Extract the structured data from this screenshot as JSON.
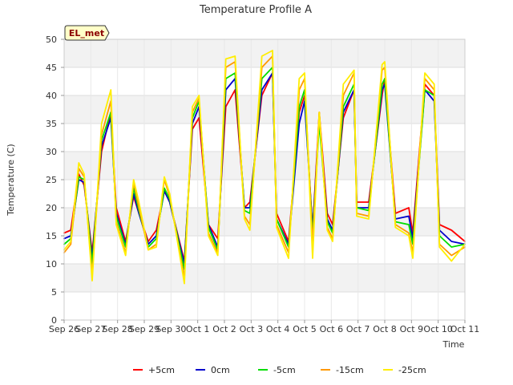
{
  "chart_data": {
    "type": "line",
    "title": "Temperature Profile A",
    "xlabel": "Time",
    "ylabel": "Temperature (C)",
    "badge": "EL_met",
    "ylim": [
      0,
      50
    ],
    "yticks": [
      0,
      5,
      10,
      15,
      20,
      25,
      30,
      35,
      40,
      45,
      50
    ],
    "xlim": [
      "Sep 26",
      "Oct 11"
    ],
    "xticks": [
      "Sep 26",
      "Sep 27",
      "Sep 28",
      "Sep 29",
      "Sep 30",
      "Oct 1",
      "Oct 2",
      "Oct 3",
      "Oct 4",
      "Oct 5",
      "Oct 6",
      "Oct 7",
      "Oct 8",
      "Oct 9",
      "Oct 10",
      "Oct 11"
    ],
    "grid": true,
    "legend_position": "bottom",
    "x_unit": "days since Sep 26 00:00 (approx. readings at daily min/max)",
    "series": [
      {
        "name": "+5cm",
        "color": "#ff0000",
        "x": [
          0.0,
          0.25,
          0.55,
          0.75,
          1.05,
          1.4,
          1.75,
          1.95,
          2.3,
          2.6,
          2.8,
          3.15,
          3.45,
          3.75,
          3.95,
          4.5,
          4.8,
          5.05,
          5.4,
          5.75,
          6.05,
          6.4,
          6.75,
          6.95,
          7.4,
          7.8,
          7.95,
          8.4,
          8.8,
          9.0,
          9.3,
          9.55,
          9.85,
          10.05,
          10.45,
          10.85,
          10.95,
          11.4,
          11.9,
          12.0,
          12.4,
          12.9,
          13.05,
          13.5,
          13.85,
          14.05,
          14.5,
          15.0
        ],
        "values": [
          15.5,
          16.0,
          26.0,
          24.0,
          12.0,
          30.0,
          37.0,
          20.0,
          14.0,
          22.0,
          19.0,
          14.0,
          16.0,
          23.0,
          21.0,
          10.5,
          34.0,
          36.0,
          17.0,
          14.5,
          38.0,
          41.0,
          20.0,
          21.0,
          40.0,
          44.0,
          19.0,
          14.0,
          37.0,
          40.0,
          16.0,
          37.0,
          19.0,
          17.0,
          36.0,
          41.0,
          21.0,
          21.0,
          40.0,
          43.0,
          19.0,
          20.0,
          15.5,
          42.0,
          40.0,
          17.0,
          16.0,
          14.0
        ]
      },
      {
        "name": "0cm",
        "color": "#0000cc",
        "x": [
          0.0,
          0.25,
          0.55,
          0.75,
          1.05,
          1.4,
          1.75,
          1.95,
          2.3,
          2.6,
          2.8,
          3.15,
          3.45,
          3.75,
          3.95,
          4.5,
          4.8,
          5.05,
          5.4,
          5.75,
          6.05,
          6.4,
          6.75,
          6.95,
          7.4,
          7.8,
          7.95,
          8.4,
          8.8,
          9.0,
          9.3,
          9.55,
          9.85,
          10.05,
          10.45,
          10.85,
          10.95,
          11.4,
          11.9,
          12.0,
          12.4,
          12.9,
          13.05,
          13.5,
          13.85,
          14.05,
          14.5,
          15.0
        ],
        "values": [
          14.5,
          15.0,
          25.0,
          24.5,
          11.0,
          31.0,
          36.0,
          19.0,
          13.5,
          22.5,
          19.0,
          13.5,
          15.0,
          23.0,
          21.0,
          10.0,
          35.0,
          38.0,
          17.0,
          13.0,
          41.0,
          43.0,
          20.0,
          20.0,
          41.0,
          44.0,
          18.0,
          13.5,
          35.0,
          39.0,
          16.0,
          36.0,
          18.0,
          16.0,
          37.0,
          41.0,
          20.0,
          20.0,
          41.0,
          42.0,
          18.0,
          18.5,
          14.5,
          41.0,
          39.0,
          16.0,
          14.0,
          13.5
        ]
      },
      {
        "name": "-5cm",
        "color": "#00dd00",
        "x": [
          0.0,
          0.25,
          0.55,
          0.75,
          1.05,
          1.4,
          1.75,
          1.95,
          2.3,
          2.6,
          2.8,
          3.15,
          3.45,
          3.75,
          3.95,
          4.5,
          4.8,
          5.05,
          5.4,
          5.75,
          6.05,
          6.4,
          6.75,
          6.95,
          7.4,
          7.8,
          7.95,
          8.4,
          8.8,
          9.0,
          9.3,
          9.55,
          9.85,
          10.05,
          10.45,
          10.85,
          10.95,
          11.4,
          11.9,
          12.0,
          12.4,
          12.9,
          13.05,
          13.5,
          13.85,
          14.05,
          14.5,
          15.0
        ],
        "values": [
          13.5,
          14.5,
          25.5,
          25.0,
          10.0,
          32.0,
          37.0,
          18.5,
          13.0,
          23.5,
          19.5,
          13.0,
          14.5,
          23.5,
          21.5,
          9.0,
          36.0,
          39.0,
          16.5,
          12.5,
          43.0,
          44.0,
          19.5,
          19.0,
          43.0,
          45.0,
          18.0,
          13.0,
          38.0,
          41.0,
          15.0,
          35.0,
          17.5,
          15.5,
          38.0,
          42.0,
          20.0,
          19.5,
          42.0,
          43.0,
          17.5,
          17.0,
          13.5,
          41.0,
          40.0,
          15.0,
          13.0,
          13.5
        ]
      },
      {
        "name": "-15cm",
        "color": "#ff9900",
        "x": [
          0.0,
          0.25,
          0.55,
          0.75,
          1.05,
          1.4,
          1.75,
          1.95,
          2.3,
          2.6,
          2.8,
          3.15,
          3.45,
          3.75,
          3.95,
          4.5,
          4.8,
          5.05,
          5.4,
          5.75,
          6.05,
          6.4,
          6.75,
          6.95,
          7.4,
          7.8,
          7.95,
          8.4,
          8.8,
          9.0,
          9.3,
          9.55,
          9.85,
          10.05,
          10.45,
          10.85,
          10.95,
          11.4,
          11.9,
          12.0,
          12.4,
          12.9,
          13.05,
          13.5,
          13.85,
          14.05,
          14.5,
          15.0
        ],
        "values": [
          12.0,
          13.5,
          27.0,
          25.5,
          8.0,
          33.0,
          39.0,
          17.5,
          12.0,
          24.5,
          20.0,
          12.5,
          13.5,
          25.0,
          22.0,
          7.5,
          37.0,
          39.5,
          15.5,
          12.0,
          45.0,
          46.0,
          18.5,
          17.0,
          45.0,
          47.0,
          17.0,
          12.0,
          41.0,
          43.0,
          13.5,
          37.0,
          16.5,
          14.5,
          40.0,
          44.0,
          19.0,
          18.5,
          44.5,
          45.0,
          17.0,
          15.5,
          12.0,
          43.0,
          41.0,
          13.5,
          11.5,
          13.0
        ]
      },
      {
        "name": "-25cm",
        "color": "#ffee00",
        "x": [
          0.0,
          0.25,
          0.55,
          0.75,
          1.05,
          1.4,
          1.75,
          1.95,
          2.3,
          2.6,
          2.8,
          3.15,
          3.45,
          3.75,
          3.95,
          4.5,
          4.8,
          5.05,
          5.4,
          5.75,
          6.05,
          6.4,
          6.75,
          6.95,
          7.4,
          7.8,
          7.95,
          8.4,
          8.8,
          9.0,
          9.3,
          9.55,
          9.85,
          10.05,
          10.45,
          10.85,
          10.95,
          11.4,
          11.9,
          12.0,
          12.4,
          12.9,
          13.05,
          13.5,
          13.85,
          14.05,
          14.5,
          15.0
        ],
        "values": [
          12.5,
          14.0,
          28.0,
          26.0,
          7.0,
          35.0,
          41.0,
          17.0,
          11.5,
          25.0,
          21.0,
          12.5,
          13.0,
          25.5,
          22.5,
          6.5,
          38.0,
          40.0,
          15.0,
          11.5,
          46.5,
          47.0,
          18.0,
          16.0,
          47.0,
          48.0,
          16.5,
          11.0,
          43.0,
          44.0,
          11.0,
          37.0,
          16.0,
          14.0,
          42.0,
          44.5,
          18.5,
          18.0,
          45.5,
          46.0,
          16.5,
          15.0,
          11.0,
          44.0,
          42.0,
          13.0,
          10.5,
          13.5
        ]
      }
    ]
  }
}
